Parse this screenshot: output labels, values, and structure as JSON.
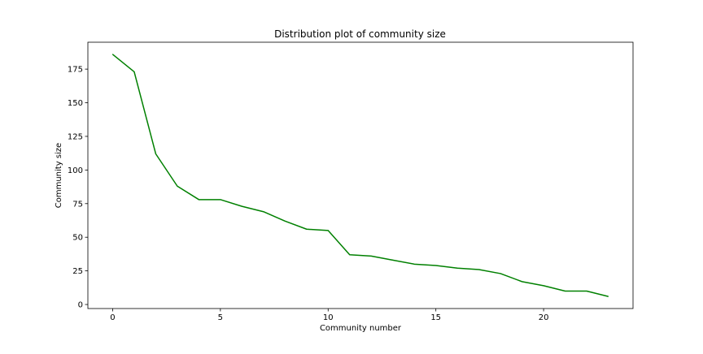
{
  "chart_data": {
    "type": "line",
    "title": "Distribution plot of community size",
    "xlabel": "Community number",
    "ylabel": "Community size",
    "xlim": [
      -1.15,
      24.15
    ],
    "ylim": [
      -3.0,
      195.0
    ],
    "xticks": [
      0,
      5,
      10,
      15,
      20
    ],
    "yticks": [
      0,
      25,
      50,
      75,
      100,
      125,
      150,
      175
    ],
    "grid": false,
    "legend": "none",
    "series": [
      {
        "color": "#008000",
        "x": [
          0,
          1,
          2,
          3,
          4,
          5,
          6,
          7,
          8,
          9,
          10,
          11,
          12,
          13,
          14,
          15,
          16,
          17,
          18,
          19,
          20,
          21,
          22,
          23
        ],
        "values": [
          186,
          173,
          112,
          88,
          78,
          78,
          73,
          69,
          62,
          56,
          55,
          37,
          36,
          33,
          30,
          29,
          27,
          26,
          23,
          17,
          14,
          10,
          10,
          6
        ]
      }
    ]
  }
}
